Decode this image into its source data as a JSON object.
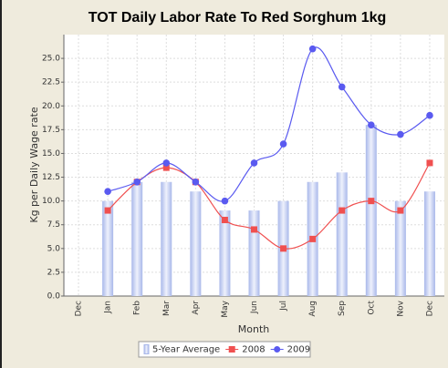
{
  "chart_data": {
    "type": "bar-line",
    "title": "TOT Daily Labor Rate To Red Sorghum 1kg",
    "x_label": "Month",
    "y_label": "Kg per Daily Wage rate",
    "categories": [
      "Dec",
      "Jan",
      "Feb",
      "Mar",
      "Apr",
      "May",
      "Jun",
      "Jul",
      "Aug",
      "Sep",
      "Oct",
      "Nov",
      "Dec"
    ],
    "series": [
      {
        "name": "5-Year Average",
        "type": "bar",
        "color": "#c4cff0",
        "values": [
          null,
          10,
          12,
          12,
          11,
          9,
          9,
          10,
          12,
          13,
          18,
          10,
          11
        ]
      },
      {
        "name": "2008",
        "type": "line",
        "color": "#f05050",
        "values": [
          null,
          9,
          12,
          13.5,
          12,
          8,
          7,
          5,
          6,
          9,
          10,
          9,
          14
        ]
      },
      {
        "name": "2009",
        "type": "line",
        "color": "#5a5af0",
        "values": [
          null,
          11,
          12,
          14,
          12,
          10,
          14,
          16,
          26,
          22,
          18,
          17,
          19
        ]
      }
    ],
    "ylim": [
      0,
      27.5
    ],
    "yticks": [
      {
        "value": 0,
        "label": "0.0"
      },
      2.5,
      {
        "value": 5,
        "label": "5.0"
      },
      7.5,
      {
        "value": 10,
        "label": "10.0"
      },
      12.5,
      {
        "value": 15,
        "label": "15.0"
      },
      17.5,
      {
        "value": 20,
        "label": "20.0"
      },
      22.5,
      {
        "value": 25,
        "label": "25.0"
      }
    ],
    "grid": true,
    "legend": "bottom"
  }
}
